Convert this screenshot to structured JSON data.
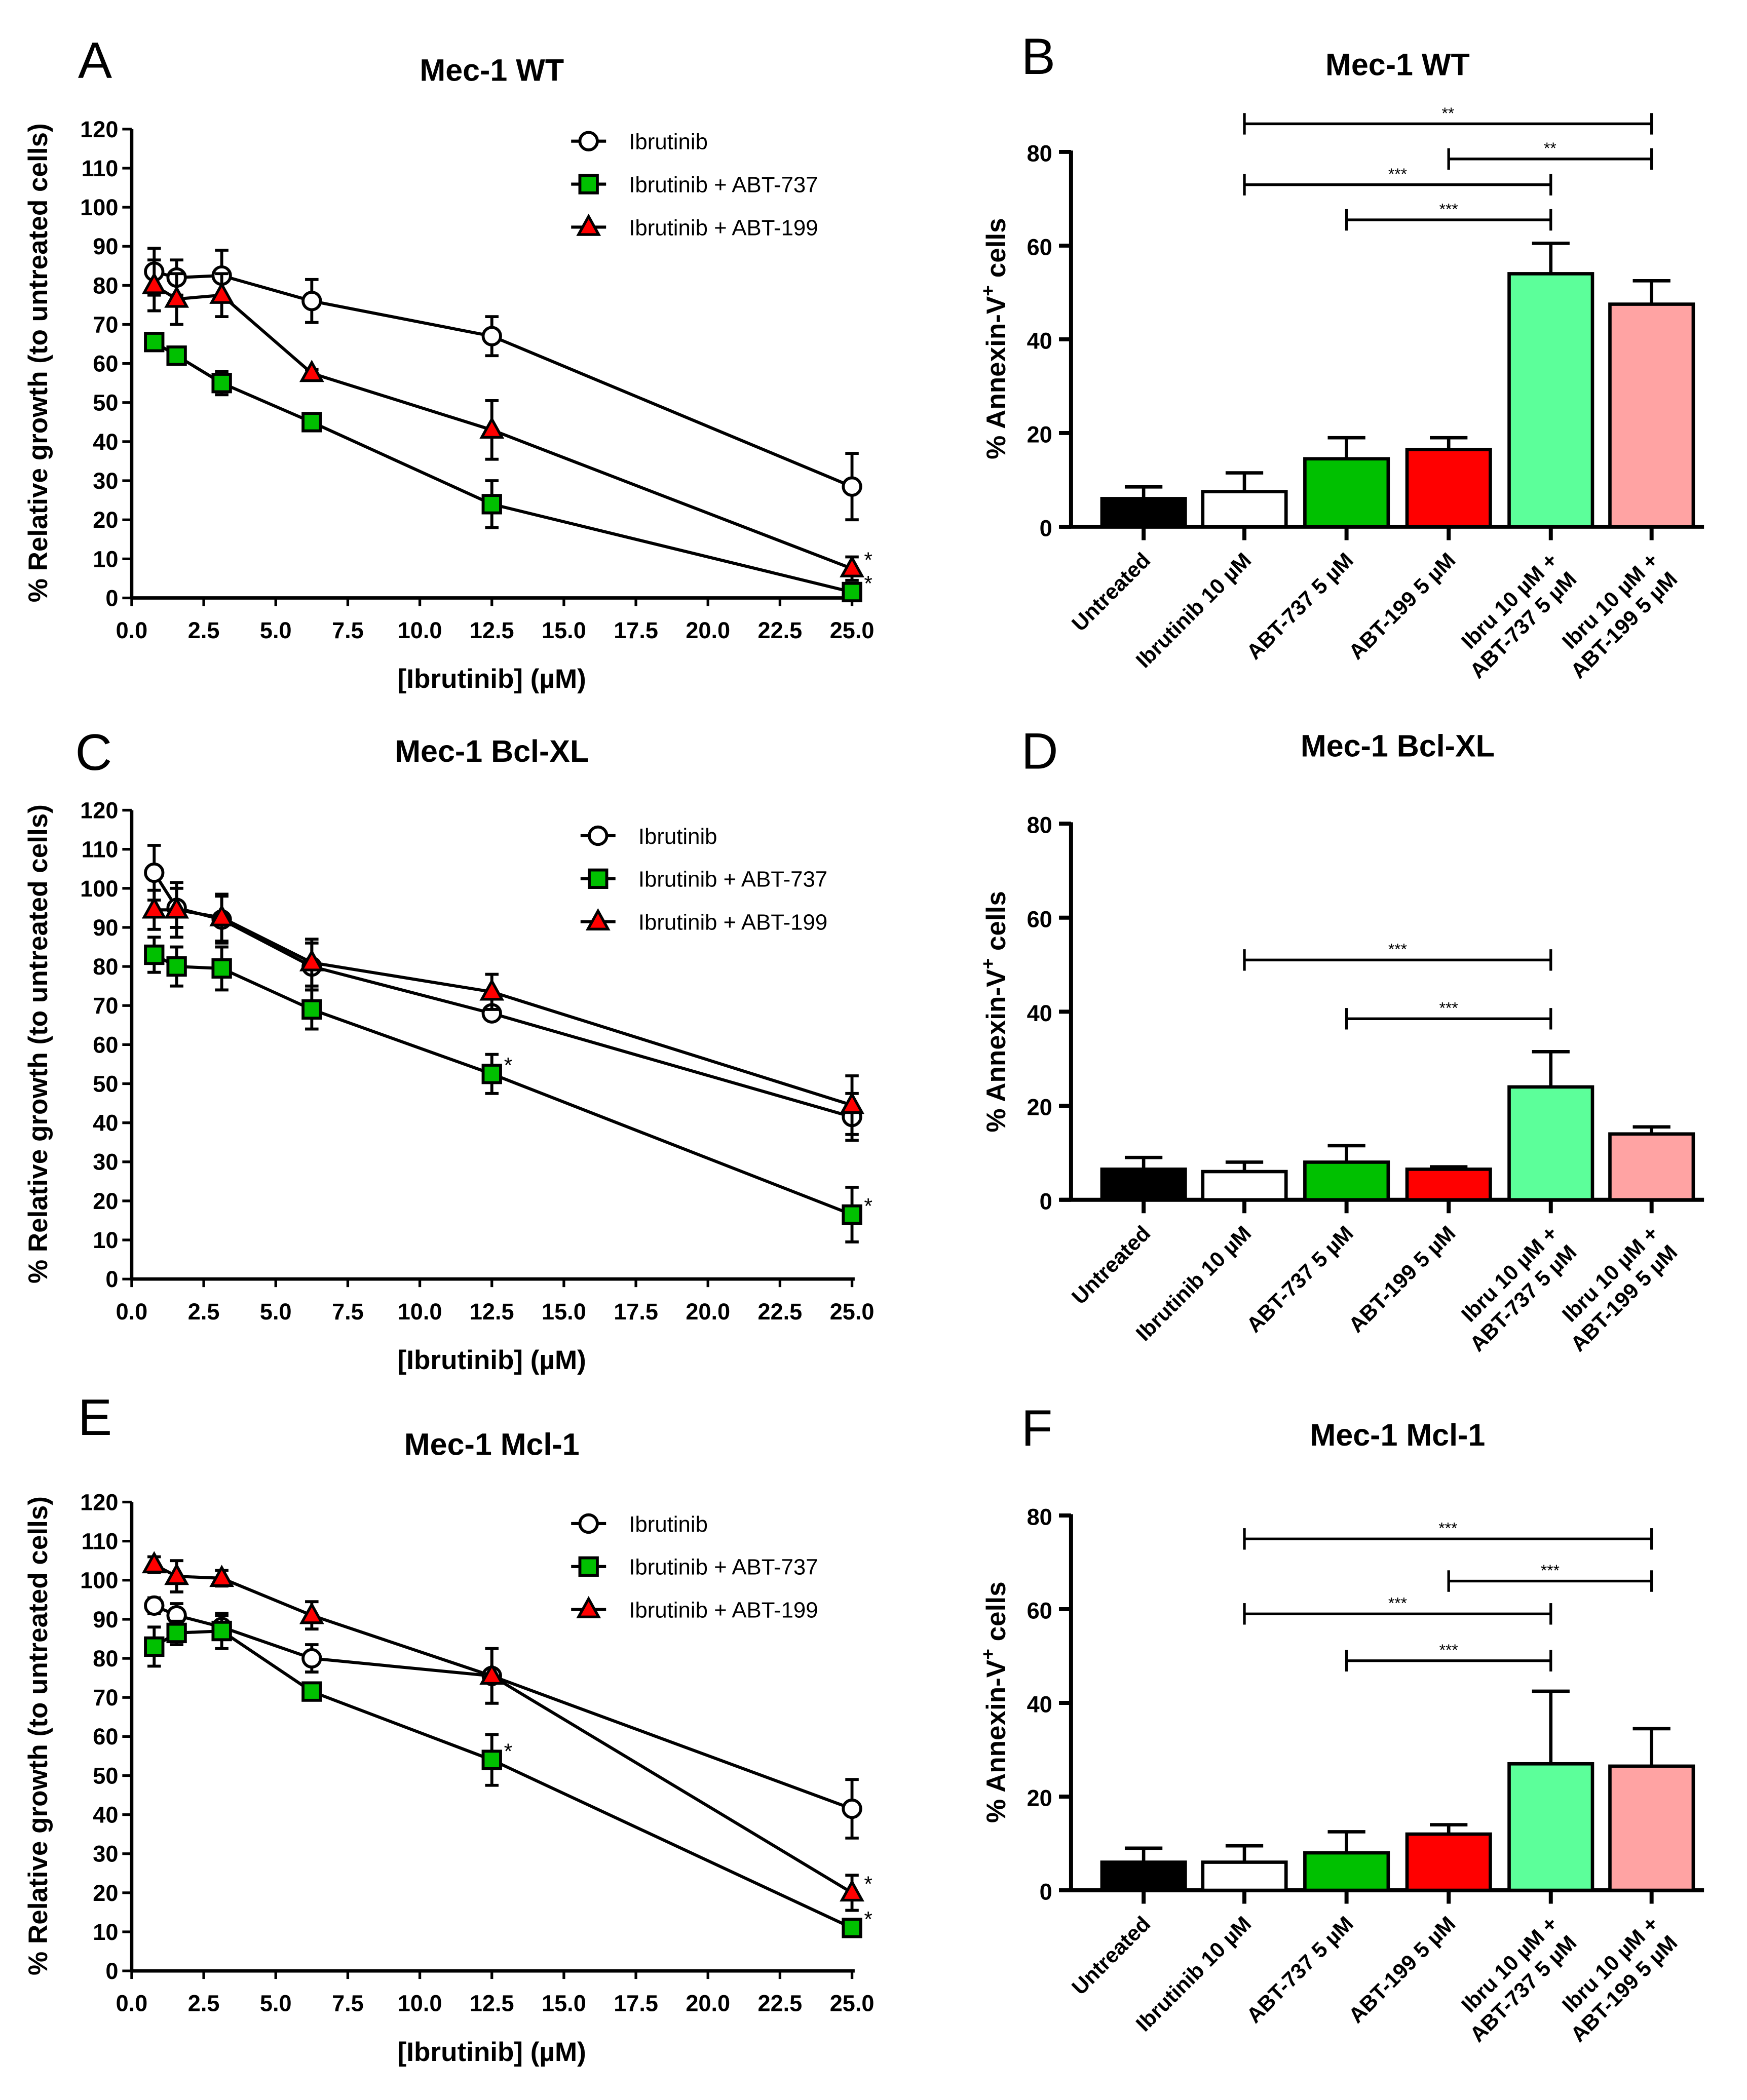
{
  "chart_data": [
    {
      "panel": "A",
      "type": "line",
      "title": "Mec-1 WT",
      "xlabel": "[Ibrutinib] (µM)",
      "ylabel": "% Relative growth (to untreated cells)",
      "xlim": [
        0,
        25
      ],
      "ylim": [
        0,
        120
      ],
      "grid": false,
      "legend": "top-right",
      "xticks": [
        "0.0",
        "2.5",
        "5.0",
        "7.5",
        "10.0",
        "12.5",
        "15.0",
        "17.5",
        "20.0",
        "22.5",
        "25.0"
      ],
      "yticks": [
        "0",
        "10",
        "20",
        "30",
        "40",
        "50",
        "60",
        "70",
        "80",
        "90",
        "100",
        "110",
        "120"
      ],
      "x": [
        0.78,
        1.56,
        3.125,
        6.25,
        12.5,
        25
      ],
      "series": [
        {
          "name": "Ibrutinib",
          "marker": "circle",
          "color": "#ffffff",
          "values": [
            83.5,
            82,
            82.5,
            76,
            67,
            28.5
          ],
          "errors": [
            6,
            4.5,
            6.5,
            5.5,
            5,
            8.5
          ],
          "significant_x": []
        },
        {
          "name": "Ibrutinib + ABT-737",
          "marker": "square",
          "color": "#00c000",
          "values": [
            65.5,
            62,
            55,
            45,
            24,
            1.5
          ],
          "errors": [
            1.5,
            1,
            3,
            1,
            6,
            2
          ],
          "significant_x": [
            25
          ]
        },
        {
          "name": "Ibrutinib + ABT-199",
          "marker": "triangle",
          "color": "#ff0000",
          "values": [
            80,
            76.5,
            77.5,
            57.5,
            43,
            7.5
          ],
          "errors": [
            6.5,
            6.5,
            5.5,
            1,
            7.5,
            3
          ],
          "significant_x": [
            25
          ]
        }
      ],
      "significance_label": "*"
    },
    {
      "panel": "B",
      "type": "bar",
      "title": "Mec-1 WT",
      "ylabel": "% Annexin-V",
      "ylabel_superscript": "+",
      "ylabel_suffix": " cells",
      "ylim": [
        0,
        80
      ],
      "yticks": [
        "0",
        "20",
        "40",
        "60",
        "80"
      ],
      "categories": [
        [
          "Untreated"
        ],
        [
          "Ibrutinib 10 µM"
        ],
        [
          "ABT-737 5 µM"
        ],
        [
          "ABT-199 5 µM"
        ],
        [
          "Ibru 10 µM +",
          "ABT-737 5 µM"
        ],
        [
          "Ibru 10 µM +",
          "ABT-199 5 µM"
        ]
      ],
      "values": [
        6,
        7.5,
        14.5,
        16.5,
        54,
        47.5
      ],
      "errors": [
        2.5,
        4,
        4.5,
        2.5,
        6.5,
        5
      ],
      "colors": [
        "#000000",
        "#ffffff",
        "#00c000",
        "#ff0000",
        "#5cff9a",
        "#ffa3a3"
      ],
      "significance": [
        {
          "from": 1,
          "to": 5,
          "label": "**",
          "y": 86
        },
        {
          "from": 3,
          "to": 5,
          "label": "**",
          "y": 78.5
        },
        {
          "from": 1,
          "to": 4,
          "label": "***",
          "y": 73
        },
        {
          "from": 2,
          "to": 4,
          "label": "***",
          "y": 65.5
        }
      ]
    },
    {
      "panel": "C",
      "type": "line",
      "title": "Mec-1 Bcl-XL",
      "xlabel": "[Ibrutinib] (µM)",
      "ylabel": "% Relative growth (to untreated cells)",
      "xlim": [
        0,
        25
      ],
      "ylim": [
        0,
        120
      ],
      "grid": false,
      "legend": "top-right",
      "xticks": [
        "0.0",
        "2.5",
        "5.0",
        "7.5",
        "10.0",
        "12.5",
        "15.0",
        "17.5",
        "20.0",
        "22.5",
        "25.0"
      ],
      "yticks": [
        "0",
        "10",
        "20",
        "30",
        "40",
        "50",
        "60",
        "70",
        "80",
        "90",
        "100",
        "110",
        "120"
      ],
      "x": [
        0.78,
        1.56,
        3.125,
        6.25,
        12.5,
        25
      ],
      "series": [
        {
          "name": "Ibrutinib",
          "marker": "circle",
          "color": "#ffffff",
          "values": [
            104,
            95,
            92,
            80,
            68,
            41.5
          ],
          "errors": [
            7,
            5,
            6,
            6,
            1.5,
            6
          ],
          "significant_x": []
        },
        {
          "name": "Ibrutinib + ABT-737",
          "marker": "square",
          "color": "#00c000",
          "values": [
            83,
            80,
            79.5,
            69,
            52.5,
            16.5
          ],
          "errors": [
            4.5,
            5,
            5.5,
            5,
            5,
            7
          ],
          "significant_x": [
            12.5,
            25
          ]
        },
        {
          "name": "Ibrutinib + ABT-199",
          "marker": "triangle",
          "color": "#ff0000",
          "values": [
            94.5,
            94.5,
            92.5,
            81,
            73.5,
            44.5
          ],
          "errors": [
            5,
            7,
            6,
            6,
            4.5,
            7.5
          ],
          "significant_x": []
        }
      ],
      "significance_label": "*"
    },
    {
      "panel": "D",
      "type": "bar",
      "title": "Mec-1 Bcl-XL",
      "ylabel": "% Annexin-V",
      "ylabel_superscript": "+",
      "ylabel_suffix": " cells",
      "ylim": [
        0,
        80
      ],
      "yticks": [
        "0",
        "20",
        "40",
        "60",
        "80"
      ],
      "categories": [
        [
          "Untreated"
        ],
        [
          "Ibrutinib 10 µM"
        ],
        [
          "ABT-737 5 µM"
        ],
        [
          "ABT-199 5 µM"
        ],
        [
          "Ibru 10 µM +",
          "ABT-737 5 µM"
        ],
        [
          "Ibru 10 µM +",
          "ABT-199 5 µM"
        ]
      ],
      "values": [
        6.5,
        6,
        8,
        6.5,
        24,
        14
      ],
      "errors": [
        2.5,
        2,
        3.5,
        0.5,
        7.5,
        1.5
      ],
      "colors": [
        "#000000",
        "#ffffff",
        "#00c000",
        "#ff0000",
        "#5cff9a",
        "#ffa3a3"
      ],
      "significance": [
        {
          "from": 1,
          "to": 4,
          "label": "***",
          "y": 51
        },
        {
          "from": 2,
          "to": 4,
          "label": "***",
          "y": 38.5
        }
      ]
    },
    {
      "panel": "E",
      "type": "line",
      "title": "Mec-1 Mcl-1",
      "xlabel": "[Ibrutinib] (µM)",
      "ylabel": "% Relative growth (to untreated cells)",
      "xlim": [
        0,
        25
      ],
      "ylim": [
        0,
        120
      ],
      "grid": false,
      "legend": "top-right",
      "xticks": [
        "0.0",
        "2.5",
        "5.0",
        "7.5",
        "10.0",
        "12.5",
        "15.0",
        "17.5",
        "20.0",
        "22.5",
        "25.0"
      ],
      "yticks": [
        "0",
        "10",
        "20",
        "30",
        "40",
        "50",
        "60",
        "70",
        "80",
        "90",
        "100",
        "110",
        "120"
      ],
      "x": [
        0.78,
        1.56,
        3.125,
        6.25,
        12.5,
        25
      ],
      "series": [
        {
          "name": "Ibrutinib",
          "marker": "circle",
          "color": "#ffffff",
          "values": [
            93.5,
            91,
            88,
            80,
            75.5,
            41.5
          ],
          "errors": [
            2,
            3,
            3,
            3.5,
            7,
            7.5
          ],
          "significant_x": []
        },
        {
          "name": "Ibrutinib + ABT-737",
          "marker": "square",
          "color": "#00c000",
          "values": [
            83,
            86.5,
            87,
            71.5,
            54,
            11
          ],
          "errors": [
            5,
            3,
            4.5,
            2,
            6.5,
            1
          ],
          "significant_x": [
            12.5,
            25
          ]
        },
        {
          "name": "Ibrutinib + ABT-199",
          "marker": "triangle",
          "color": "#ff0000",
          "values": [
            104,
            101,
            100.5,
            91,
            75.5,
            20
          ],
          "errors": [
            2,
            4,
            2,
            3.5,
            7,
            4.5
          ],
          "significant_x": [
            25
          ]
        }
      ],
      "significance_label": "*"
    },
    {
      "panel": "F",
      "type": "bar",
      "title": "Mec-1 Mcl-1",
      "ylabel": "% Annexin-V",
      "ylabel_superscript": "+",
      "ylabel_suffix": " cells",
      "ylim": [
        0,
        80
      ],
      "yticks": [
        "0",
        "20",
        "40",
        "60",
        "80"
      ],
      "categories": [
        [
          "Untreated"
        ],
        [
          "Ibrutinib 10 µM"
        ],
        [
          "ABT-737 5 µM"
        ],
        [
          "ABT-199 5 µM"
        ],
        [
          "Ibru 10 µM +",
          "ABT-737 5 µM"
        ],
        [
          "Ibru 10 µM +",
          "ABT-199 5 µM"
        ]
      ],
      "values": [
        6,
        6,
        8,
        12,
        27,
        26.5
      ],
      "errors": [
        3,
        3.5,
        4.5,
        2,
        15.5,
        8
      ],
      "colors": [
        "#000000",
        "#ffffff",
        "#00c000",
        "#ff0000",
        "#5cff9a",
        "#ffa3a3"
      ],
      "significance": [
        {
          "from": 1,
          "to": 5,
          "label": "***",
          "y": 75
        },
        {
          "from": 3,
          "to": 5,
          "label": "***",
          "y": 66
        },
        {
          "from": 1,
          "to": 4,
          "label": "***",
          "y": 59
        },
        {
          "from": 2,
          "to": 4,
          "label": "***",
          "y": 49
        }
      ]
    }
  ]
}
